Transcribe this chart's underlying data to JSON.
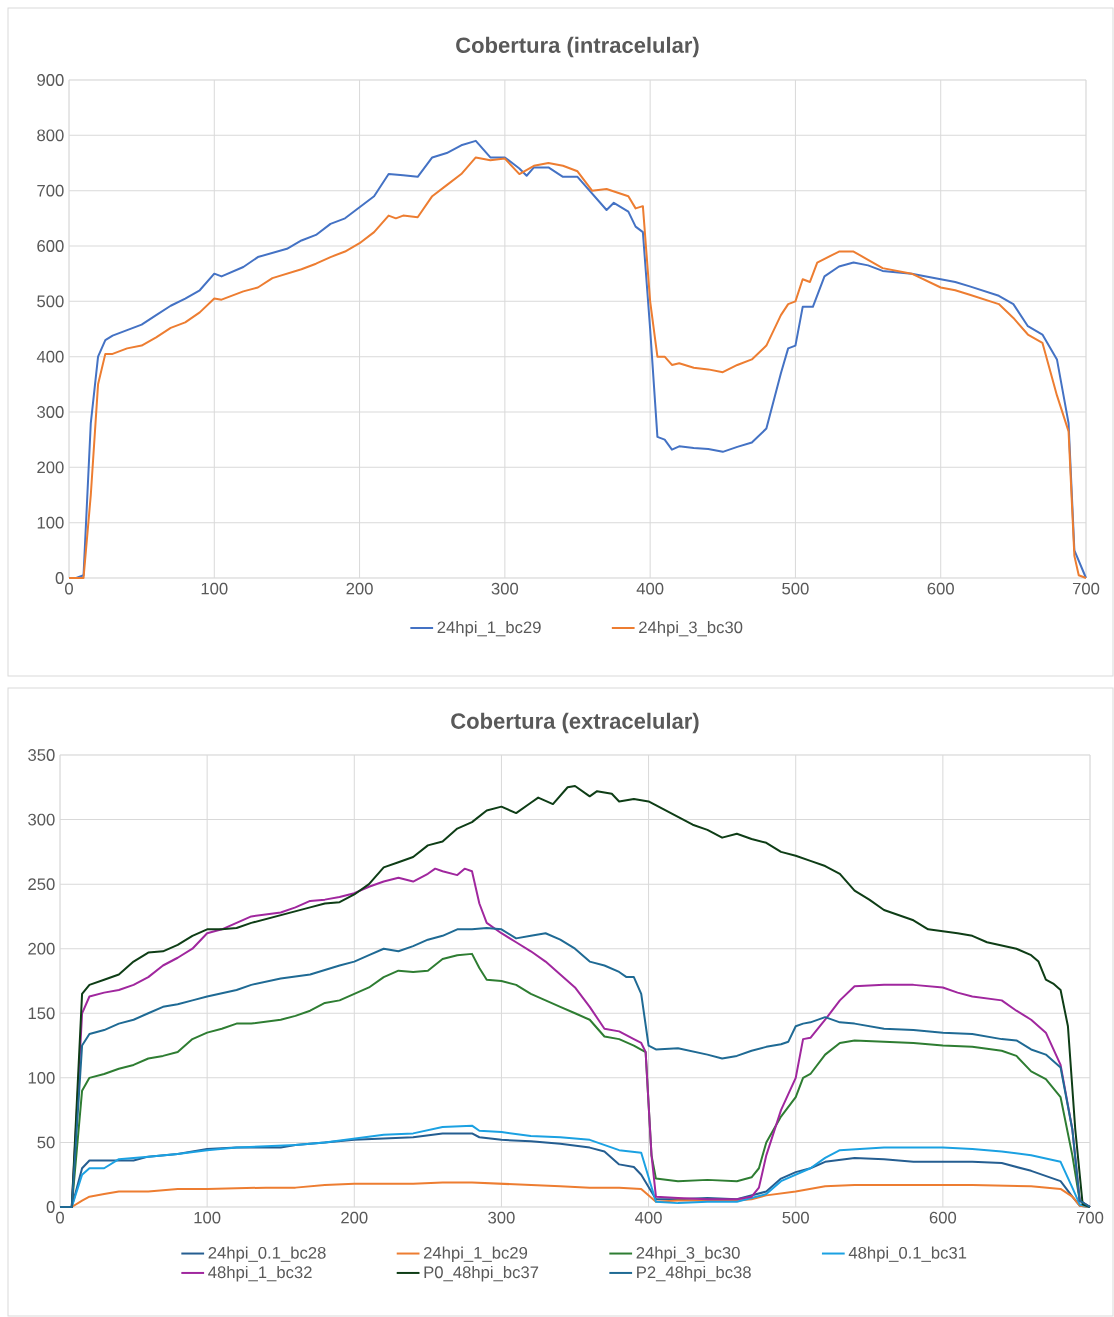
{
  "chart_data": [
    {
      "type": "line",
      "title": "Cobertura (intracelular)",
      "xlim": [
        0,
        700
      ],
      "xticks": [
        0,
        100,
        200,
        300,
        400,
        500,
        600,
        700
      ],
      "ylim": [
        0,
        900
      ],
      "yticks": [
        0,
        100,
        200,
        300,
        400,
        500,
        600,
        700,
        800,
        900
      ],
      "grid": true,
      "legend": "bottom",
      "series": [
        {
          "name": "24hpi_1_bc29",
          "color": "#4472c4",
          "x": [
            0,
            5,
            10,
            15,
            20,
            25,
            30,
            40,
            50,
            60,
            70,
            80,
            90,
            100,
            105,
            120,
            130,
            150,
            160,
            170,
            180,
            190,
            200,
            210,
            220,
            230,
            240,
            250,
            260,
            270,
            280,
            290,
            300,
            310,
            315,
            320,
            330,
            340,
            350,
            360,
            370,
            375,
            385,
            390,
            395,
            400,
            405,
            410,
            415,
            420,
            430,
            440,
            450,
            460,
            470,
            480,
            490,
            495,
            500,
            505,
            512,
            520,
            530,
            540,
            550,
            560,
            580,
            600,
            610,
            620,
            640,
            650,
            660,
            670,
            680,
            688,
            692,
            695,
            700
          ],
          "values": [
            0,
            0,
            5,
            280,
            400,
            430,
            438,
            448,
            458,
            475,
            492,
            505,
            520,
            550,
            545,
            562,
            580,
            595,
            610,
            620,
            640,
            650,
            670,
            690,
            730,
            728,
            725,
            760,
            768,
            782,
            790,
            760,
            760,
            740,
            727,
            742,
            742,
            725,
            725,
            695,
            665,
            678,
            662,
            635,
            625,
            450,
            255,
            250,
            232,
            238,
            235,
            233,
            228,
            237,
            245,
            270,
            370,
            415,
            420,
            490,
            490,
            545,
            563,
            570,
            565,
            555,
            550,
            540,
            535,
            527,
            510,
            495,
            455,
            440,
            395,
            280,
            50,
            null,
            0
          ]
        },
        {
          "name": "24hpi_3_bc30",
          "color": "#ed7d31",
          "x": [
            0,
            10,
            15,
            20,
            25,
            30,
            40,
            50,
            60,
            70,
            80,
            90,
            100,
            105,
            120,
            130,
            140,
            160,
            170,
            180,
            190,
            200,
            210,
            220,
            225,
            230,
            240,
            250,
            260,
            270,
            280,
            290,
            300,
            310,
            320,
            330,
            340,
            350,
            360,
            370,
            385,
            390,
            395,
            400,
            405,
            410,
            415,
            420,
            430,
            440,
            450,
            460,
            470,
            480,
            490,
            495,
            500,
            505,
            510,
            515,
            530,
            540,
            550,
            560,
            580,
            600,
            610,
            620,
            640,
            650,
            660,
            670,
            680,
            688,
            692,
            695,
            700
          ],
          "values": [
            0,
            0,
            150,
            350,
            405,
            405,
            415,
            420,
            435,
            452,
            462,
            480,
            505,
            503,
            518,
            525,
            542,
            558,
            568,
            580,
            590,
            605,
            625,
            655,
            650,
            655,
            652,
            690,
            710,
            730,
            760,
            755,
            758,
            730,
            745,
            750,
            745,
            735,
            700,
            703,
            690,
            668,
            672,
            500,
            400,
            400,
            385,
            388,
            380,
            377,
            372,
            385,
            395,
            420,
            475,
            495,
            500,
            540,
            535,
            570,
            590,
            590,
            575,
            560,
            550,
            525,
            520,
            512,
            495,
            470,
            440,
            425,
            330,
            265,
            40,
            5,
            0
          ]
        }
      ]
    },
    {
      "type": "line",
      "title": "Cobertura (extracelular)",
      "xlim": [
        0,
        700
      ],
      "xticks": [
        0,
        100,
        200,
        300,
        400,
        500,
        600,
        700
      ],
      "ylim": [
        0,
        350
      ],
      "yticks": [
        0,
        50,
        100,
        150,
        200,
        250,
        300,
        350
      ],
      "grid": true,
      "legend": "bottom",
      "series": [
        {
          "name": "24hpi_0.1_bc28",
          "color": "#255e91",
          "x": [
            0,
            8,
            15,
            20,
            30,
            50,
            60,
            80,
            100,
            120,
            140,
            150,
            160,
            180,
            200,
            220,
            240,
            260,
            280,
            285,
            300,
            320,
            340,
            360,
            370,
            380,
            390,
            395,
            405,
            420,
            440,
            460,
            480,
            490,
            500,
            510,
            520,
            540,
            560,
            580,
            600,
            620,
            640,
            660,
            680,
            688,
            693,
            700
          ],
          "values": [
            0,
            0,
            30,
            36,
            36,
            36,
            39,
            41,
            45,
            46,
            46,
            46,
            48,
            50,
            52,
            53,
            54,
            57,
            57,
            54,
            52,
            51,
            49,
            46,
            43,
            33,
            31,
            25,
            6,
            6,
            7,
            6,
            12,
            22,
            27,
            30,
            35,
            38,
            37,
            35,
            35,
            35,
            34,
            28,
            20,
            8,
            1,
            0
          ]
        },
        {
          "name": "24hpi_1_bc29",
          "color": "#ed7d31",
          "x": [
            0,
            8,
            15,
            20,
            30,
            40,
            60,
            80,
            100,
            140,
            160,
            180,
            200,
            240,
            260,
            280,
            300,
            340,
            360,
            380,
            395,
            405,
            420,
            440,
            460,
            470,
            480,
            500,
            520,
            540,
            580,
            620,
            660,
            680,
            688,
            693,
            700
          ],
          "values": [
            0,
            0,
            5,
            8,
            10,
            12,
            12,
            14,
            14,
            15,
            15,
            17,
            18,
            18,
            19,
            19,
            18,
            16,
            15,
            15,
            14,
            4,
            5,
            5,
            5,
            6,
            9,
            12,
            16,
            17,
            17,
            17,
            16,
            14,
            8,
            1,
            0
          ]
        },
        {
          "name": "24hpi_3_bc30",
          "color": "#2e7d32",
          "x": [
            0,
            8,
            15,
            20,
            30,
            40,
            50,
            60,
            70,
            80,
            90,
            100,
            110,
            120,
            130,
            150,
            160,
            170,
            180,
            190,
            200,
            210,
            220,
            230,
            240,
            250,
            260,
            270,
            280,
            285,
            290,
            300,
            310,
            320,
            330,
            340,
            350,
            360,
            370,
            380,
            390,
            398,
            402,
            405,
            420,
            440,
            460,
            470,
            475,
            480,
            490,
            500,
            505,
            510,
            520,
            530,
            540,
            560,
            580,
            600,
            620,
            640,
            650,
            660,
            670,
            680,
            688,
            693,
            700
          ],
          "values": [
            0,
            0,
            90,
            100,
            103,
            107,
            110,
            115,
            117,
            120,
            130,
            135,
            138,
            142,
            142,
            145,
            148,
            152,
            158,
            160,
            165,
            170,
            178,
            183,
            182,
            183,
            192,
            195,
            196,
            185,
            176,
            175,
            172,
            165,
            160,
            155,
            150,
            145,
            132,
            130,
            125,
            120,
            40,
            22,
            20,
            21,
            20,
            23,
            30,
            50,
            70,
            85,
            100,
            103,
            118,
            127,
            129,
            128,
            127,
            125,
            124,
            121,
            117,
            105,
            99,
            85,
            40,
            5,
            0
          ]
        },
        {
          "name": "48hpi_0.1_bc31",
          "color": "#1ba1e2",
          "x": [
            0,
            8,
            15,
            20,
            30,
            40,
            50,
            60,
            80,
            100,
            120,
            140,
            160,
            180,
            200,
            220,
            240,
            260,
            280,
            285,
            300,
            320,
            340,
            360,
            380,
            395,
            405,
            420,
            440,
            460,
            480,
            490,
            500,
            510,
            520,
            530,
            560,
            600,
            620,
            640,
            660,
            680,
            688,
            693,
            700
          ],
          "values": [
            0,
            0,
            25,
            30,
            30,
            37,
            38,
            39,
            41,
            44,
            46,
            47,
            48,
            50,
            53,
            56,
            57,
            62,
            63,
            59,
            58,
            55,
            54,
            52,
            44,
            42,
            4,
            3,
            4,
            4,
            10,
            20,
            25,
            30,
            38,
            44,
            46,
            46,
            45,
            43,
            40,
            35,
            15,
            2,
            0
          ]
        },
        {
          "name": "48hpi_1_bc32",
          "color": "#a0279e",
          "x": [
            0,
            8,
            15,
            20,
            30,
            40,
            50,
            60,
            70,
            80,
            90,
            100,
            110,
            120,
            130,
            150,
            160,
            170,
            180,
            190,
            200,
            210,
            220,
            230,
            240,
            250,
            255,
            260,
            270,
            275,
            280,
            285,
            290,
            300,
            310,
            320,
            330,
            340,
            350,
            360,
            370,
            380,
            390,
            395,
            398,
            402,
            405,
            420,
            440,
            460,
            470,
            475,
            480,
            490,
            500,
            505,
            510,
            520,
            530,
            540,
            560,
            580,
            600,
            610,
            620,
            640,
            650,
            660,
            670,
            680,
            688,
            693,
            700
          ],
          "values": [
            0,
            0,
            150,
            163,
            166,
            168,
            172,
            178,
            187,
            193,
            200,
            212,
            215,
            220,
            225,
            228,
            232,
            237,
            238,
            240,
            243,
            248,
            252,
            255,
            252,
            258,
            262,
            260,
            257,
            262,
            260,
            235,
            220,
            212,
            205,
            198,
            190,
            180,
            170,
            155,
            138,
            136,
            130,
            127,
            120,
            40,
            8,
            7,
            6,
            6,
            8,
            15,
            40,
            75,
            100,
            130,
            131,
            145,
            160,
            171,
            172,
            172,
            170,
            166,
            163,
            160,
            152,
            145,
            135,
            110,
            60,
            5,
            0
          ]
        },
        {
          "name": "P0_48hpi_bc37",
          "color": "#0e3d16",
          "x": [
            0,
            8,
            15,
            20,
            30,
            40,
            50,
            60,
            70,
            80,
            90,
            100,
            110,
            120,
            130,
            150,
            170,
            180,
            190,
            200,
            210,
            220,
            230,
            240,
            250,
            260,
            270,
            280,
            290,
            300,
            310,
            320,
            325,
            335,
            345,
            350,
            360,
            365,
            375,
            380,
            390,
            400,
            410,
            420,
            430,
            440,
            450,
            460,
            470,
            480,
            490,
            500,
            510,
            520,
            530,
            540,
            550,
            560,
            580,
            590,
            610,
            620,
            630,
            650,
            660,
            665,
            670,
            675,
            680,
            685,
            690,
            695,
            700
          ],
          "values": [
            0,
            0,
            165,
            172,
            176,
            180,
            190,
            197,
            198,
            203,
            210,
            215,
            215,
            216,
            220,
            226,
            232,
            235,
            236,
            242,
            250,
            263,
            267,
            271,
            280,
            283,
            293,
            298,
            307,
            310,
            305,
            313,
            317,
            312,
            325,
            326,
            318,
            322,
            320,
            314,
            316,
            314,
            308,
            302,
            296,
            292,
            286,
            289,
            285,
            282,
            275,
            272,
            268,
            264,
            258,
            245,
            238,
            230,
            222,
            215,
            212,
            210,
            205,
            200,
            195,
            190,
            176,
            173,
            168,
            140,
            60,
            2,
            0
          ]
        },
        {
          "name": "P2_48hpi_bc38",
          "color": "#1f6a94",
          "x": [
            0,
            8,
            15,
            20,
            30,
            40,
            50,
            60,
            70,
            80,
            90,
            100,
            120,
            130,
            150,
            170,
            190,
            200,
            210,
            220,
            230,
            240,
            250,
            260,
            270,
            280,
            290,
            300,
            310,
            320,
            330,
            340,
            350,
            360,
            370,
            380,
            385,
            390,
            395,
            400,
            405,
            420,
            440,
            450,
            460,
            470,
            480,
            490,
            495,
            500,
            505,
            510,
            520,
            530,
            540,
            560,
            580,
            600,
            620,
            640,
            650,
            660,
            670,
            680,
            688,
            693,
            700
          ],
          "values": [
            0,
            0,
            125,
            134,
            137,
            142,
            145,
            150,
            155,
            157,
            160,
            163,
            168,
            172,
            177,
            180,
            187,
            190,
            195,
            200,
            198,
            202,
            207,
            210,
            215,
            215,
            216,
            215,
            208,
            210,
            212,
            207,
            200,
            190,
            187,
            182,
            178,
            178,
            165,
            125,
            122,
            123,
            118,
            115,
            117,
            121,
            124,
            126,
            128,
            140,
            142,
            143,
            147,
            143,
            142,
            138,
            137,
            135,
            134,
            130,
            129,
            122,
            118,
            108,
            60,
            5,
            0
          ]
        }
      ]
    }
  ]
}
